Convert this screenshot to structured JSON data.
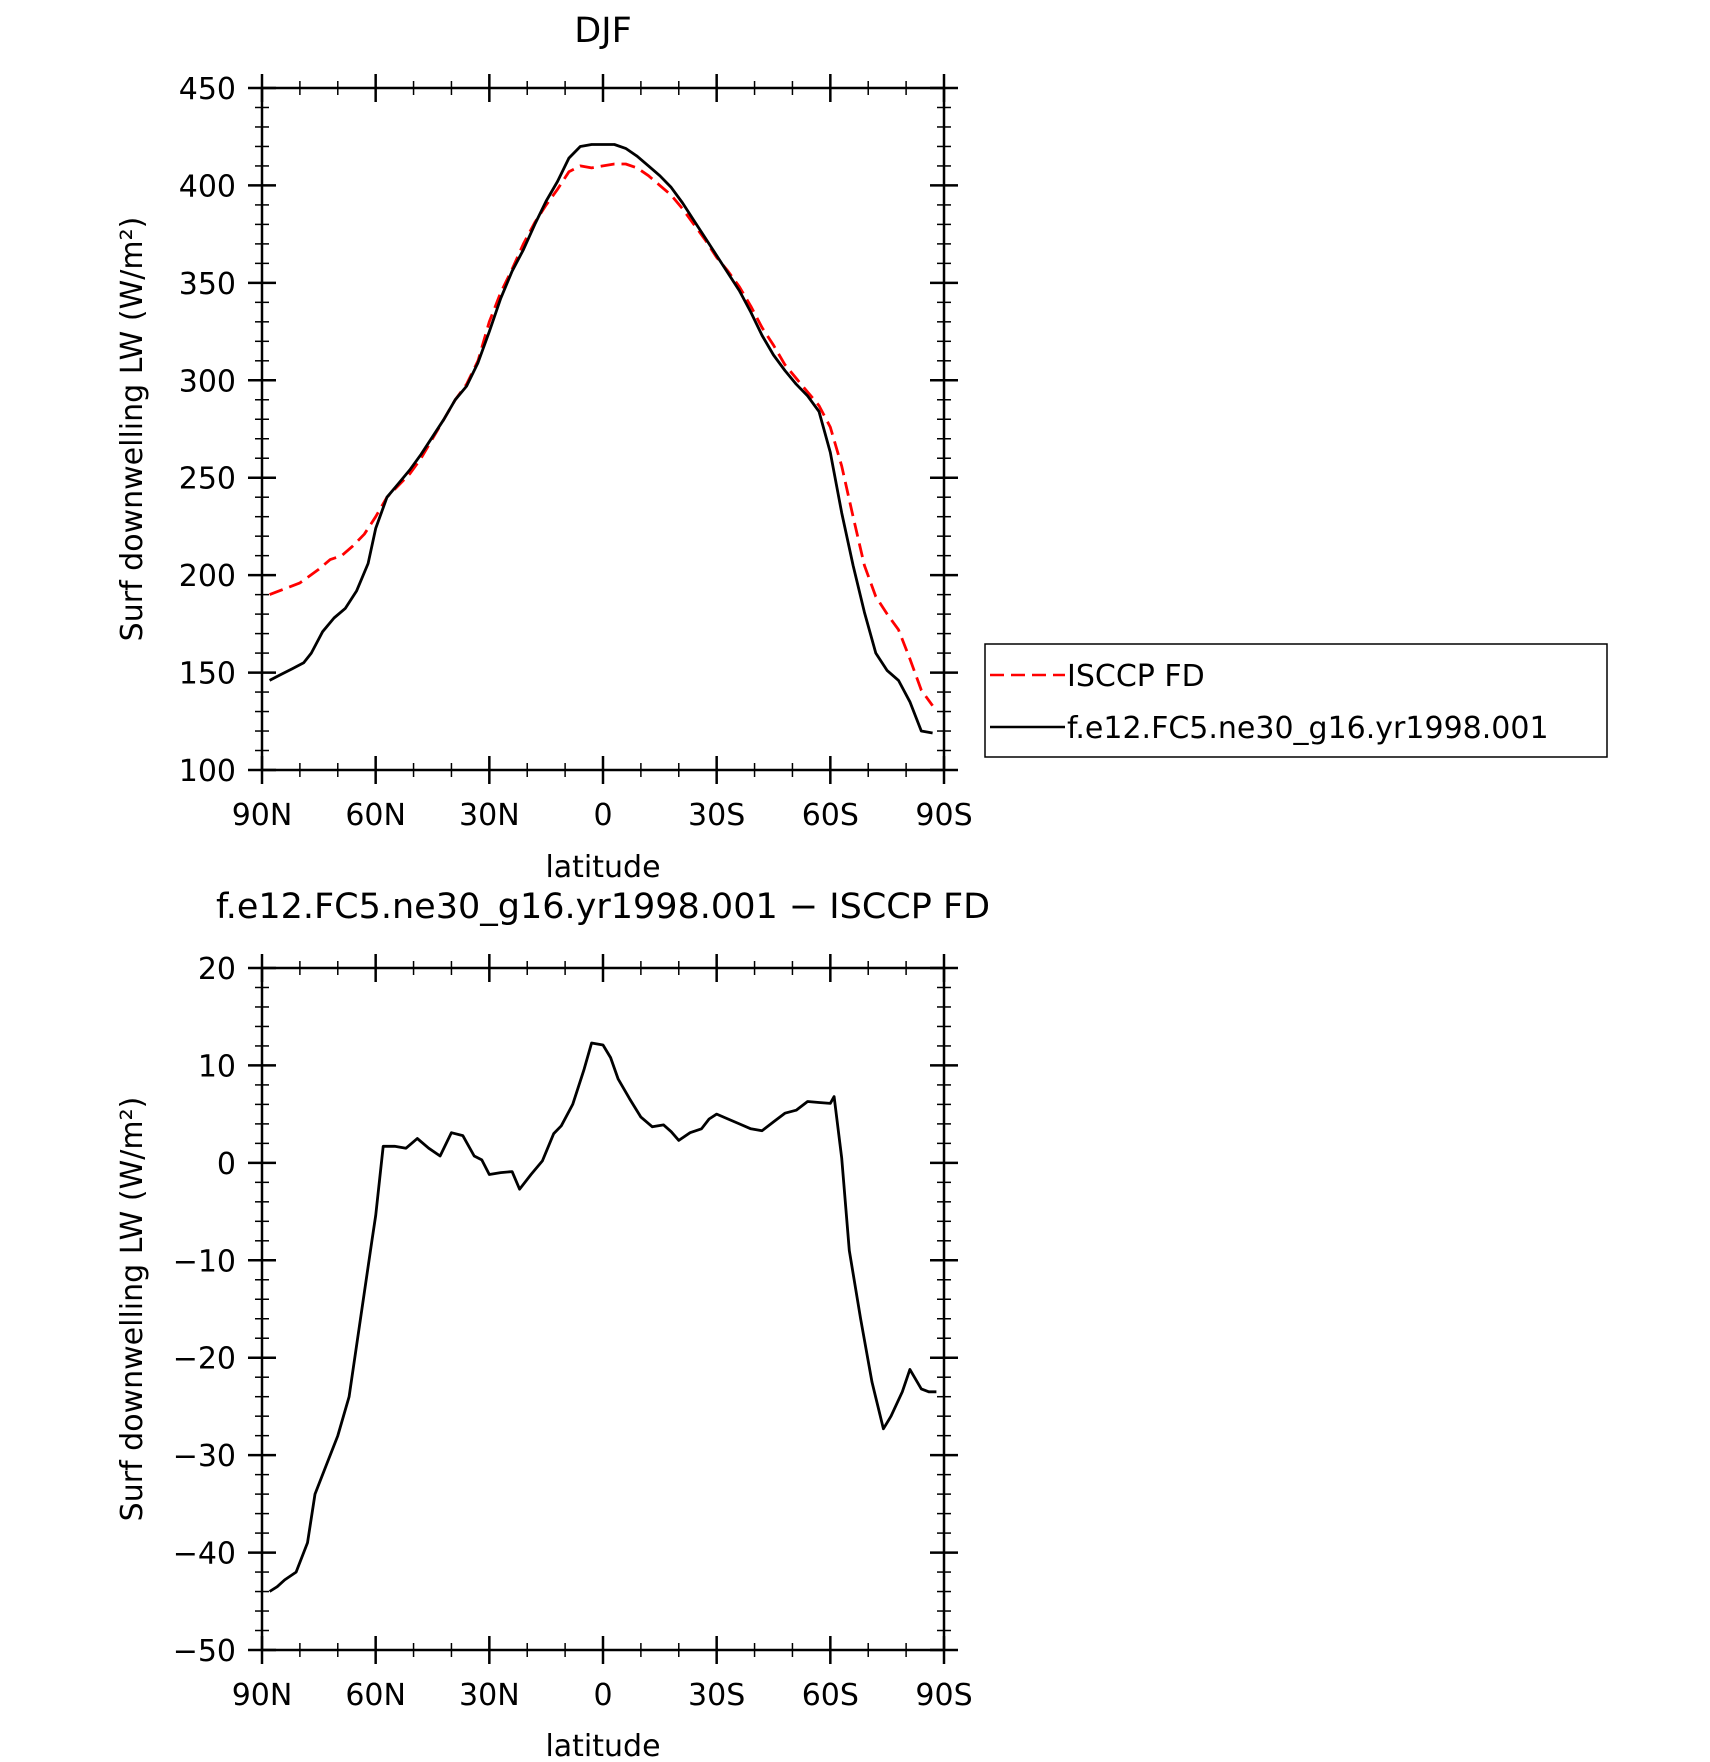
{
  "chart_data": [
    {
      "type": "line",
      "title": "DJF",
      "xlabel": "latitude",
      "ylabel": "Surf downwelling LW (W/m²)",
      "xlim": [
        90,
        -90
      ],
      "ylim": [
        100,
        450
      ],
      "xticks": [
        90,
        60,
        30,
        0,
        -30,
        -60,
        -90
      ],
      "xticklabels": [
        "90N",
        "60N",
        "30N",
        "0",
        "30S",
        "60S",
        "90S"
      ],
      "yticks": [
        100,
        150,
        200,
        250,
        300,
        350,
        400,
        450
      ],
      "yticklabels": [
        "100",
        "150",
        "200",
        "250",
        "300",
        "350",
        "400",
        "450"
      ],
      "legend": "right",
      "series": [
        {
          "name": "ISCCP FD",
          "color": "#ff0000",
          "style": "dashed",
          "x": [
            88,
            80,
            75,
            72,
            69,
            66,
            63,
            60,
            57,
            54,
            51,
            48,
            45,
            42,
            39,
            36,
            33,
            30,
            27,
            24,
            21,
            18,
            15,
            12,
            9,
            6,
            3,
            0,
            -3,
            -6,
            -9,
            -12,
            -15,
            -18,
            -21,
            -24,
            -27,
            -30,
            -33,
            -36,
            -39,
            -42,
            -45,
            -48,
            -51,
            -54,
            -57,
            -60,
            -63,
            -66,
            -69,
            -72,
            -75,
            -78,
            -81,
            -84,
            -87
          ],
          "values": [
            190,
            196,
            203,
            208,
            210,
            215,
            221,
            230,
            240,
            246,
            252,
            260,
            270,
            280,
            290,
            298,
            310,
            330,
            345,
            357,
            370,
            381,
            390,
            398,
            407,
            410,
            409,
            410,
            411,
            411,
            409,
            405,
            400,
            395,
            388,
            380,
            372,
            363,
            356,
            348,
            338,
            327,
            318,
            308,
            301,
            294,
            287,
            276,
            256,
            230,
            205,
            189,
            180,
            172,
            157,
            141,
            133
          ]
        },
        {
          "name": "f.e12.FC5.ne30_g16.yr1998.001",
          "color": "#000000",
          "style": "solid",
          "x": [
            88,
            85,
            82,
            79,
            77,
            74,
            71,
            68,
            65,
            62,
            60,
            57,
            54,
            51,
            48,
            45,
            42,
            39,
            36,
            33,
            30,
            27,
            24,
            21,
            18,
            15,
            12,
            9,
            6,
            3,
            0,
            -3,
            -6,
            -9,
            -12,
            -15,
            -18,
            -21,
            -24,
            -27,
            -30,
            -33,
            -36,
            -39,
            -42,
            -45,
            -48,
            -51,
            -54,
            -57,
            -60,
            -63,
            -66,
            -69,
            -72,
            -75,
            -78,
            -81,
            -84,
            -87
          ],
          "values": [
            146,
            149,
            152,
            155,
            160,
            171,
            178,
            183,
            192,
            206,
            224,
            240,
            247,
            254,
            262,
            271,
            280,
            290,
            297,
            309,
            325,
            342,
            356,
            367,
            380,
            392,
            402,
            414,
            420,
            421,
            421,
            421,
            419,
            415,
            410,
            405,
            399,
            391,
            382,
            373,
            364,
            355,
            346,
            335,
            323,
            313,
            305,
            298,
            292,
            284,
            263,
            232,
            205,
            181,
            160,
            151,
            146,
            135,
            120,
            119
          ]
        }
      ]
    },
    {
      "type": "line",
      "title": "f.e12.FC5.ne30_g16.yr1998.001 − ISCCP FD",
      "xlabel": "latitude",
      "ylabel": "Surf downwelling LW (W/m²)",
      "xlim": [
        90,
        -90
      ],
      "ylim": [
        -50,
        20
      ],
      "xticks": [
        90,
        60,
        30,
        0,
        -30,
        -60,
        -90
      ],
      "xticklabels": [
        "90N",
        "60N",
        "30N",
        "0",
        "30S",
        "60S",
        "90S"
      ],
      "yticks": [
        -50,
        -40,
        -30,
        -20,
        -10,
        0,
        10,
        20
      ],
      "yticklabels": [
        "−50",
        "−40",
        "−30",
        "−20",
        "−10",
        "0",
        "10",
        "20"
      ],
      "series": [
        {
          "name": "",
          "color": "#000000",
          "style": "solid",
          "x": [
            88,
            86,
            84,
            81,
            78,
            76,
            73,
            70,
            67,
            64,
            61,
            60,
            58,
            55,
            52,
            49,
            46,
            43,
            40,
            37,
            34,
            32,
            30,
            27,
            24,
            22,
            19,
            16,
            13,
            11,
            8,
            5,
            3,
            0,
            -2,
            -4,
            -7,
            -10,
            -13,
            -16,
            -18,
            -20,
            -23,
            -26,
            -28,
            -30,
            -33,
            -36,
            -39,
            -42,
            -45,
            -48,
            -51,
            -54,
            -57,
            -60,
            -61,
            -63,
            -65,
            -68,
            -71,
            -74,
            -76,
            -79,
            -81,
            -84,
            -86,
            -88
          ],
          "values": [
            -44,
            -43.5,
            -42.8,
            -42,
            -39,
            -34,
            -31,
            -28,
            -24,
            -16,
            -8,
            -5.4,
            1.7,
            1.7,
            1.5,
            2.5,
            1.5,
            0.7,
            3.1,
            2.8,
            0.7,
            0.3,
            -1.2,
            -1,
            -0.9,
            -2.7,
            -1.2,
            0.2,
            3,
            3.8,
            6,
            9.6,
            12.3,
            12.1,
            10.8,
            8.6,
            6.6,
            4.7,
            3.7,
            3.9,
            3.2,
            2.3,
            3.1,
            3.5,
            4.5,
            5,
            4.5,
            4,
            3.5,
            3.3,
            4.2,
            5.1,
            5.4,
            6.3,
            6.2,
            6.1,
            6.8,
            0.5,
            -9,
            -16,
            -22.5,
            -27.3,
            -26,
            -23.5,
            -21.2,
            -23.2,
            -23.5,
            -23.5
          ]
        }
      ]
    }
  ]
}
